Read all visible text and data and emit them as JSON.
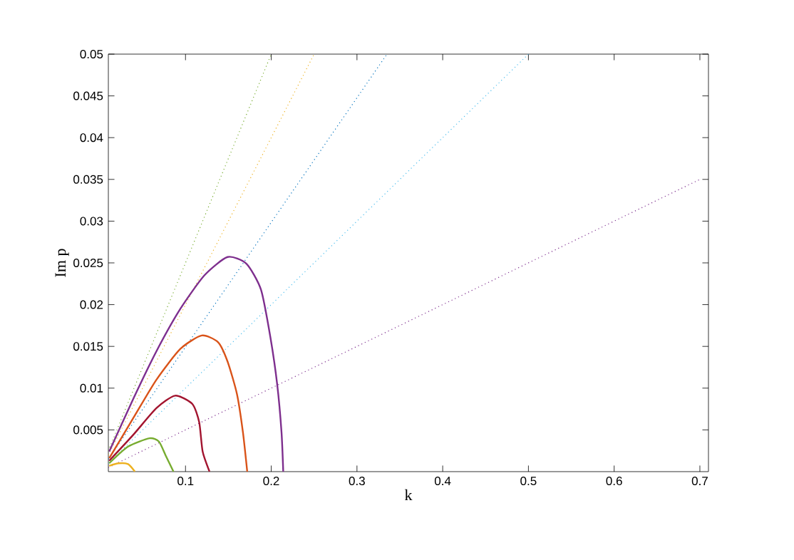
{
  "chart_data": {
    "type": "line",
    "xlabel": "k",
    "ylabel": "Im p",
    "xlim": [
      0.01,
      0.71
    ],
    "ylim": [
      0,
      0.05
    ],
    "xticks": [
      0.1,
      0.2,
      0.3,
      0.4,
      0.5,
      0.6,
      0.7
    ],
    "yticks": [
      0.005,
      0.01,
      0.015,
      0.02,
      0.025,
      0.03,
      0.035,
      0.04,
      0.045,
      0.05
    ],
    "grid": false,
    "marker": "none",
    "series": [
      {
        "color": "#77ac30",
        "line_style": "dotted",
        "x": [
          0.01,
          0.2
        ],
        "values": [
          0.0025,
          0.05
        ]
      },
      {
        "color": "#edb120",
        "line_style": "dotted",
        "x": [
          0.01,
          0.25
        ],
        "values": [
          0.002,
          0.05
        ]
      },
      {
        "color": "#0072bd",
        "line_style": "dotted",
        "x": [
          0.01,
          0.335
        ],
        "values": [
          0.0015,
          0.05
        ]
      },
      {
        "color": "#4dbeee",
        "line_style": "dotted",
        "x": [
          0.01,
          0.5
        ],
        "values": [
          0.001,
          0.05
        ]
      },
      {
        "color": "#7e2f8e",
        "line_style": "dotted",
        "x": [
          0.01,
          0.7
        ],
        "values": [
          0.0005,
          0.035
        ]
      },
      {
        "color": "#7e2f8e",
        "line_style": "solid",
        "x": [
          0.011,
          0.039,
          0.066,
          0.094,
          0.122,
          0.149,
          0.171,
          0.188,
          0.199,
          0.207,
          0.212,
          0.214
        ],
        "values": [
          0.0024,
          0.0087,
          0.0144,
          0.0195,
          0.0235,
          0.0257,
          0.0249,
          0.0218,
          0.0161,
          0.0104,
          0.0047,
          0.0
        ]
      },
      {
        "color": "#d95319",
        "line_style": "solid",
        "x": [
          0.011,
          0.039,
          0.066,
          0.094,
          0.119,
          0.138,
          0.149,
          0.16,
          0.167,
          0.172
        ],
        "values": [
          0.0016,
          0.0064,
          0.011,
          0.0147,
          0.0163,
          0.0155,
          0.0132,
          0.0093,
          0.0047,
          0.0
        ]
      },
      {
        "color": "#a2142f",
        "line_style": "solid",
        "x": [
          0.011,
          0.039,
          0.066,
          0.088,
          0.108,
          0.116,
          0.12,
          0.128
        ],
        "values": [
          0.0013,
          0.0044,
          0.0076,
          0.0091,
          0.0081,
          0.0059,
          0.0024,
          0.0
        ]
      },
      {
        "color": "#77ac30",
        "line_style": "solid",
        "x": [
          0.011,
          0.033,
          0.058,
          0.069,
          0.077,
          0.086
        ],
        "values": [
          0.001,
          0.003,
          0.004,
          0.0036,
          0.0019,
          0.0
        ]
      },
      {
        "color": "#edb120",
        "line_style": "solid",
        "x": [
          0.011,
          0.022,
          0.033,
          0.041
        ],
        "values": [
          0.0007,
          0.001,
          0.0009,
          0.0
        ]
      }
    ]
  }
}
